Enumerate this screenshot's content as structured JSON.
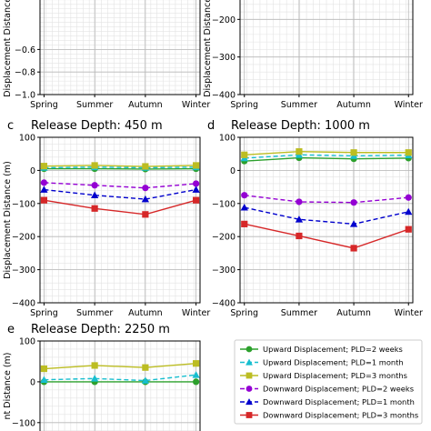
{
  "figure": {
    "xlabel_tokens": [
      "Spring",
      "Summer",
      "Autumn",
      "Winter"
    ]
  },
  "chart_data": [
    {
      "panel_letter": "",
      "title": "",
      "type": "line",
      "categories": [
        "Spring",
        "Summer",
        "Autumn",
        "Winter"
      ],
      "ylabel": "Displacement Distance (m)",
      "ylim": [
        -1.0,
        0.0
      ],
      "yticks": [
        -1.0,
        -0.8,
        -0.6
      ],
      "ytick_labels": [
        "−1.0",
        "−0.8",
        "−0.6"
      ],
      "grid": true,
      "series": []
    },
    {
      "panel_letter": "",
      "title": "",
      "type": "line",
      "categories": [
        "Spring",
        "Summer",
        "Autumn",
        "Winter"
      ],
      "ylabel": "Displacement Distance (m)",
      "ylim": [
        -400,
        -100
      ],
      "yticks": [
        -400,
        -300,
        -200
      ],
      "ytick_labels": [
        "−400",
        "−300",
        "−200"
      ],
      "grid": true,
      "series": []
    },
    {
      "panel_letter": "c",
      "title": "Release Depth: 450 m",
      "type": "line",
      "categories": [
        "Spring",
        "Summer",
        "Autumn",
        "Winter"
      ],
      "ylabel": "Displacement Distance (m)",
      "ylim": [
        -400,
        100
      ],
      "yticks": [
        100,
        0,
        -100,
        -200,
        -300,
        -400
      ],
      "ytick_labels": [
        "100",
        "0",
        "−100",
        "−200",
        "−300",
        "−400"
      ],
      "grid": true,
      "series": [
        {
          "name": "Upward Displacement; PLD=2 weeks",
          "values": [
            5,
            5,
            4,
            5
          ]
        },
        {
          "name": "Upward Displacement; PLD=1 month",
          "values": [
            8,
            10,
            8,
            10
          ]
        },
        {
          "name": "Upward Displacement; PLD=3 months",
          "values": [
            13,
            15,
            12,
            15
          ]
        },
        {
          "name": "Downward Displacement; PLD=2 weeks",
          "values": [
            -37,
            -45,
            -53,
            -40
          ]
        },
        {
          "name": "Downward Displacement; PLD=1 month",
          "values": [
            -58,
            -75,
            -87,
            -58
          ]
        },
        {
          "name": "Downward Displacement; PLD=3 months",
          "values": [
            -90,
            -115,
            -133,
            -90
          ]
        }
      ]
    },
    {
      "panel_letter": "d",
      "title": "Release Depth: 1000 m",
      "type": "line",
      "categories": [
        "Spring",
        "Summer",
        "Autumn",
        "Winter"
      ],
      "ylabel": "",
      "ylim": [
        -400,
        100
      ],
      "yticks": [
        100,
        0,
        -100,
        -200,
        -300,
        -400
      ],
      "ytick_labels": [
        "100",
        "0",
        "−100",
        "−200",
        "−300",
        "−400"
      ],
      "grid": true,
      "series": [
        {
          "name": "Upward Displacement; PLD=2 weeks",
          "values": [
            28,
            38,
            35,
            37
          ]
        },
        {
          "name": "Upward Displacement; PLD=1 month",
          "values": [
            37,
            47,
            44,
            46
          ]
        },
        {
          "name": "Upward Displacement; PLD=3 months",
          "values": [
            47,
            57,
            54,
            54
          ]
        },
        {
          "name": "Downward Displacement; PLD=2 weeks",
          "values": [
            -75,
            -95,
            -97,
            -82
          ]
        },
        {
          "name": "Downward Displacement; PLD=1 month",
          "values": [
            -112,
            -148,
            -162,
            -125
          ]
        },
        {
          "name": "Downward Displacement; PLD=3 months",
          "values": [
            -162,
            -198,
            -235,
            -178
          ]
        }
      ]
    },
    {
      "panel_letter": "e",
      "title": "Release Depth: 2250 m",
      "type": "line",
      "categories": [
        "Spring",
        "Summer",
        "Autumn",
        "Winter"
      ],
      "ylabel": "nt Distance (m)",
      "ylim": [
        -145,
        100
      ],
      "yticks": [
        100,
        0,
        -100
      ],
      "ytick_labels": [
        "100",
        "0",
        "−100"
      ],
      "grid": true,
      "series": [
        {
          "name": "Upward Displacement; PLD=2 weeks",
          "values": [
            0,
            0,
            0,
            0
          ]
        },
        {
          "name": "Upward Displacement; PLD=1 month",
          "values": [
            5,
            8,
            3,
            17
          ]
        },
        {
          "name": "Upward Displacement; PLD=3 months",
          "values": [
            32,
            40,
            35,
            45
          ]
        }
      ]
    }
  ],
  "legend": {
    "entries": [
      {
        "label": "Upward Displacement; PLD=2 weeks",
        "color": "#2ca02c",
        "marker": "circle",
        "dash": "solid"
      },
      {
        "label": "Upward Displacement; PLD=1 month",
        "color": "#17becf",
        "marker": "triangle",
        "dash": "dashed"
      },
      {
        "label": "Upward Displacement; PLD=3 months",
        "color": "#bcbd22",
        "marker": "square",
        "dash": "solid"
      },
      {
        "label": "Downward Displacement; PLD=2 weeks",
        "color": "#9400d3",
        "marker": "circle",
        "dash": "dashed"
      },
      {
        "label": "Downward Displacement; PLD=1 month",
        "color": "#0000cd",
        "marker": "triangle",
        "dash": "dashed"
      },
      {
        "label": "Downward Displacement; PLD=3 months",
        "color": "#d62728",
        "marker": "square",
        "dash": "solid"
      }
    ]
  }
}
